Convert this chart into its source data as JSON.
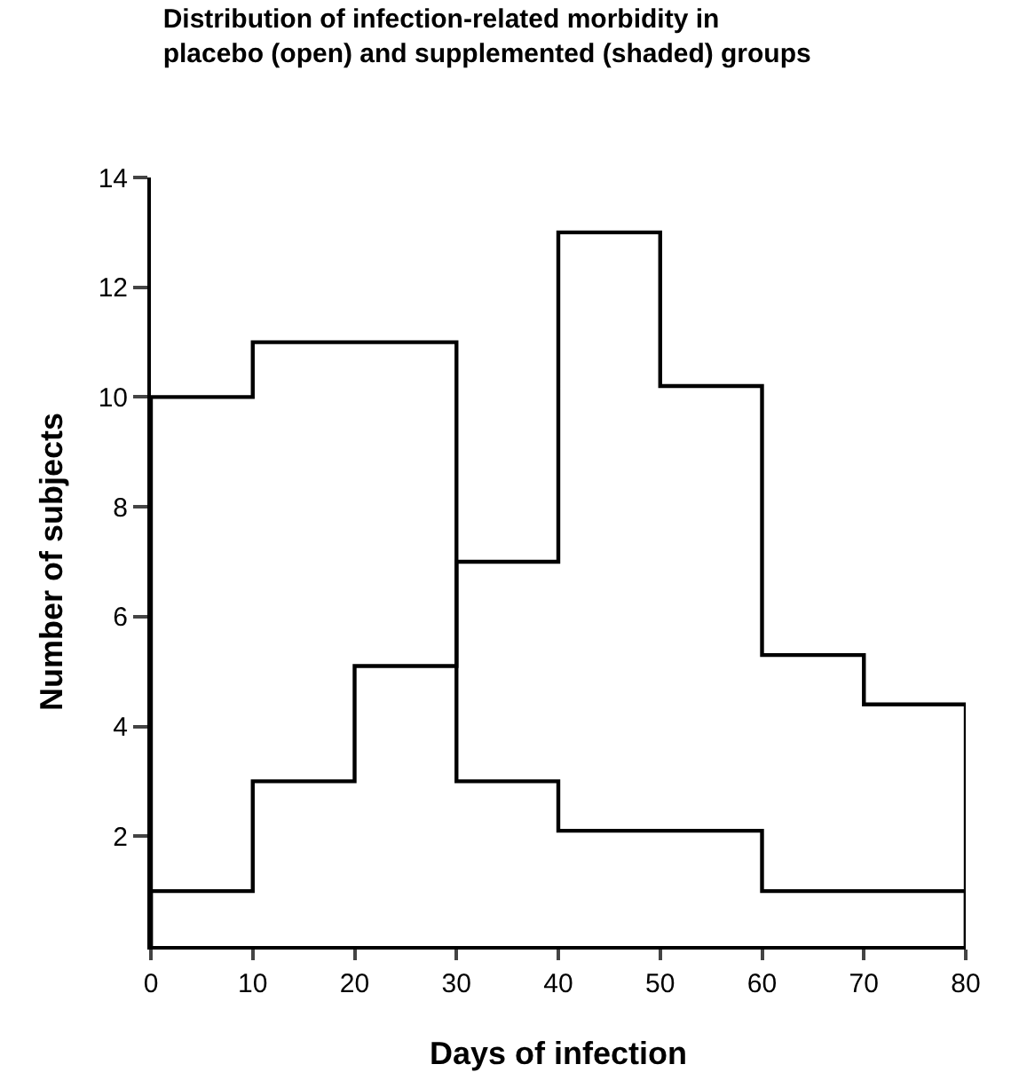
{
  "chart_data": {
    "type": "histogram",
    "title": "Distribution of infection-related morbidity in\nplacebo (open) and supplemented (shaded) groups",
    "xlabel": "Days of infection",
    "ylabel": "Number of subjects",
    "bins": [
      0,
      10,
      20,
      30,
      40,
      50,
      60,
      70,
      80
    ],
    "series": [
      {
        "color": "#000000",
        "values": [
          10,
          11,
          11,
          3,
          2.1,
          2.1,
          1,
          1
        ]
      },
      {
        "color": "#000000",
        "values": [
          1,
          3,
          5.1,
          7,
          13,
          10.2,
          5.3,
          4.4
        ]
      }
    ],
    "xlim": [
      0,
      80
    ],
    "xticks": [
      0,
      10,
      20,
      30,
      40,
      50,
      60,
      70,
      80
    ],
    "ylim": [
      0,
      14
    ],
    "yticks": [
      2,
      4,
      6,
      8,
      10,
      12,
      14
    ]
  }
}
